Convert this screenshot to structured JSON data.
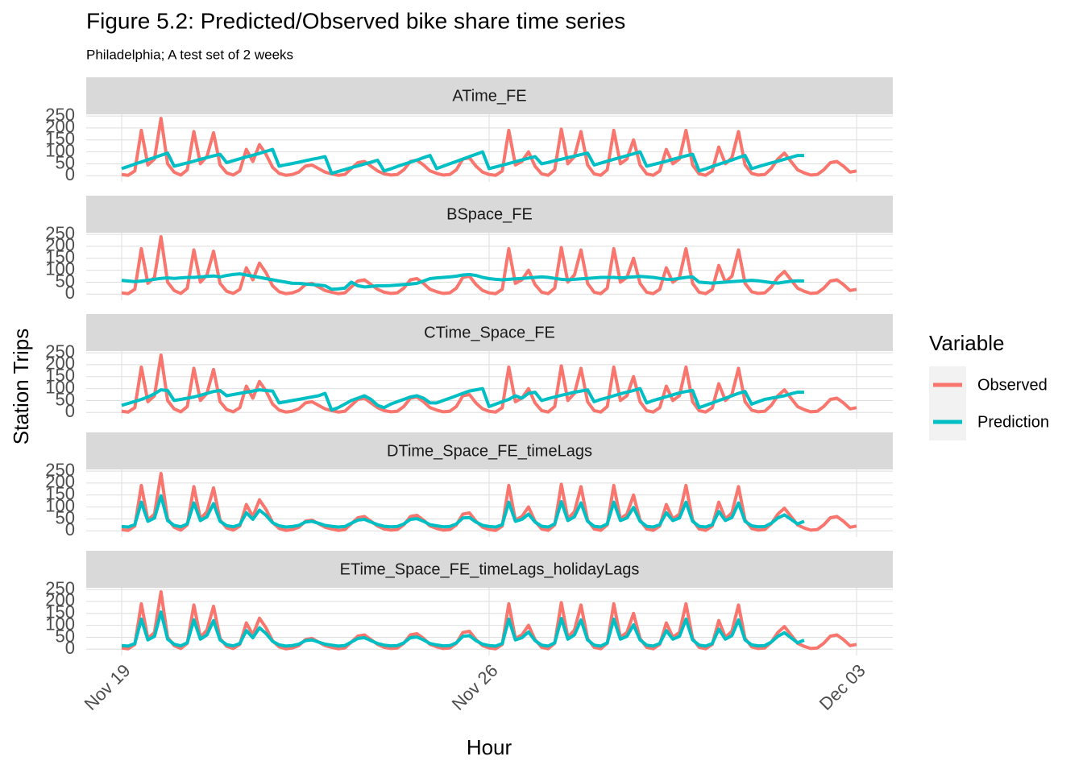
{
  "chart_data": {
    "type": "line",
    "title": "Figure 5.2: Predicted/Observed bike share time series",
    "subtitle": "Philadelphia; A test set of 2 weeks",
    "xlabel": "Hour",
    "ylabel": "Station Trips",
    "legend_title": "Variable",
    "legend_position": "right",
    "grid": true,
    "xlim": [
      -0.675,
      14.69
    ],
    "xticks": [
      {
        "value": 0,
        "label": "Nov 19"
      },
      {
        "value": 7,
        "label": "Nov 26"
      },
      {
        "value": 14,
        "label": "Dec 03"
      }
    ],
    "ylim": [
      -26,
      257
    ],
    "yticks": [
      0,
      50,
      100,
      150,
      200,
      250
    ],
    "x": [
      0,
      0.125,
      0.25,
      0.375,
      0.5,
      0.625,
      0.75,
      0.875,
      1,
      1.125,
      1.25,
      1.375,
      1.5,
      1.625,
      1.75,
      1.875,
      2,
      2.125,
      2.25,
      2.375,
      2.5,
      2.625,
      2.75,
      2.875,
      3,
      3.125,
      3.25,
      3.375,
      3.5,
      3.625,
      3.75,
      3.875,
      4,
      4.125,
      4.25,
      4.375,
      4.5,
      4.625,
      4.75,
      4.875,
      5,
      5.125,
      5.25,
      5.375,
      5.5,
      5.625,
      5.75,
      5.875,
      6,
      6.125,
      6.25,
      6.375,
      6.5,
      6.625,
      6.75,
      6.875,
      7,
      7.125,
      7.25,
      7.375,
      7.5,
      7.625,
      7.75,
      7.875,
      8,
      8.125,
      8.25,
      8.375,
      8.5,
      8.625,
      8.75,
      8.875,
      9,
      9.125,
      9.25,
      9.375,
      9.5,
      9.625,
      9.75,
      9.875,
      10,
      10.125,
      10.25,
      10.375,
      10.5,
      10.625,
      10.75,
      10.875,
      11,
      11.125,
      11.25,
      11.375,
      11.5,
      11.625,
      11.75,
      11.875,
      12,
      12.125,
      12.25,
      12.375,
      12.5,
      12.625,
      12.75,
      12.875,
      13,
      13.125,
      13.25,
      13.375,
      13.5,
      13.625,
      13.75,
      13.875,
      14
    ],
    "series": [
      {
        "name": "Observed",
        "color": "#F8766D",
        "values": [
          5,
          2,
          20,
          190,
          45,
          70,
          240,
          50,
          15,
          3,
          25,
          185,
          50,
          80,
          180,
          45,
          12,
          3,
          20,
          110,
          60,
          130,
          90,
          35,
          10,
          2,
          5,
          15,
          40,
          45,
          30,
          15,
          8,
          2,
          5,
          30,
          55,
          60,
          40,
          20,
          8,
          3,
          5,
          25,
          60,
          65,
          45,
          20,
          10,
          3,
          5,
          25,
          70,
          75,
          40,
          15,
          5,
          2,
          20,
          190,
          45,
          60,
          100,
          40,
          8,
          2,
          25,
          195,
          50,
          80,
          185,
          45,
          8,
          2,
          25,
          190,
          50,
          70,
          150,
          45,
          8,
          2,
          20,
          110,
          50,
          70,
          190,
          45,
          8,
          2,
          20,
          120,
          50,
          75,
          185,
          45,
          10,
          3,
          5,
          30,
          70,
          95,
          60,
          25,
          12,
          3,
          5,
          25,
          55,
          60,
          40,
          15,
          20
        ]
      },
      {
        "name": "Prediction",
        "color": "#00BFC4"
      }
    ],
    "panels": [
      {
        "title": "ATime_FE",
        "prediction": [
          30,
          39,
          49,
          58,
          67,
          76,
          86,
          95,
          40,
          47,
          54,
          61,
          69,
          76,
          83,
          90,
          55,
          63,
          71,
          79,
          86,
          94,
          102,
          110,
          40,
          46,
          51,
          57,
          63,
          69,
          74,
          80,
          10,
          18,
          26,
          34,
          41,
          49,
          57,
          65,
          20,
          29,
          39,
          48,
          57,
          66,
          76,
          85,
          30,
          40,
          50,
          60,
          70,
          80,
          90,
          100,
          30,
          37,
          44,
          51,
          59,
          66,
          73,
          80,
          50,
          56,
          63,
          69,
          76,
          82,
          89,
          95,
          45,
          53,
          61,
          69,
          76,
          84,
          92,
          100,
          40,
          47,
          54,
          61,
          69,
          76,
          83,
          90,
          20,
          29,
          39,
          48,
          57,
          66,
          76,
          85,
          30,
          38,
          46,
          54,
          61,
          69,
          77,
          85,
          85,
          null,
          null,
          null,
          null,
          null,
          null,
          null,
          null
        ]
      },
      {
        "title": "BSpace_FE",
        "prediction": [
          58,
          55,
          52,
          55,
          58,
          62,
          66,
          68,
          66,
          68,
          70,
          70,
          72,
          74,
          76,
          72,
          78,
          82,
          85,
          80,
          75,
          70,
          65,
          60,
          55,
          50,
          45,
          45,
          42,
          40,
          38,
          35,
          20,
          22,
          25,
          50,
          35,
          30,
          32,
          35,
          35,
          36,
          38,
          40,
          42,
          45,
          55,
          65,
          68,
          70,
          72,
          75,
          80,
          82,
          78,
          70,
          65,
          62,
          60,
          62,
          64,
          66,
          68,
          70,
          72,
          70,
          66,
          62,
          60,
          62,
          64,
          66,
          68,
          70,
          70,
          70,
          68,
          70,
          72,
          74,
          72,
          70,
          66,
          62,
          62,
          66,
          70,
          72,
          50,
          48,
          46,
          48,
          50,
          52,
          54,
          56,
          58,
          56,
          52,
          48,
          46,
          50,
          54,
          56,
          55,
          null,
          null,
          null,
          null,
          null,
          null,
          null,
          null
        ]
      },
      {
        "title": "CTime_Space_FE",
        "prediction": [
          30,
          38,
          46,
          55,
          65,
          78,
          95,
          92,
          50,
          55,
          60,
          65,
          72,
          80,
          88,
          92,
          70,
          75,
          80,
          85,
          90,
          95,
          92,
          90,
          40,
          45,
          50,
          55,
          60,
          65,
          70,
          80,
          10,
          20,
          35,
          50,
          60,
          70,
          55,
          30,
          20,
          35,
          45,
          55,
          65,
          70,
          60,
          40,
          40,
          50,
          60,
          70,
          80,
          90,
          95,
          100,
          25,
          35,
          45,
          55,
          70,
          60,
          80,
          85,
          50,
          58,
          65,
          72,
          78,
          85,
          90,
          95,
          45,
          55,
          62,
          70,
          78,
          85,
          92,
          100,
          40,
          50,
          58,
          66,
          74,
          82,
          88,
          92,
          20,
          30,
          40,
          50,
          60,
          70,
          80,
          88,
          35,
          45,
          55,
          60,
          65,
          70,
          78,
          85,
          85,
          null,
          null,
          null,
          null,
          null,
          null,
          null,
          null
        ]
      },
      {
        "title": "DTime_Space_FE_timeLags",
        "prediction": [
          18,
          16,
          26,
          120,
          40,
          54,
          147,
          43,
          23,
          17,
          29,
          117,
          43,
          59,
          114,
          40,
          22,
          17,
          26,
          76,
          48,
          87,
          65,
          34,
          21,
          16,
          18,
          23,
          37,
          40,
          32,
          23,
          19,
          16,
          18,
          32,
          45,
          48,
          37,
          26,
          19,
          17,
          18,
          29,
          48,
          51,
          40,
          26,
          21,
          17,
          18,
          29,
          54,
          56,
          37,
          23,
          18,
          16,
          26,
          120,
          40,
          48,
          70,
          37,
          19,
          16,
          29,
          122,
          43,
          59,
          117,
          40,
          19,
          16,
          29,
          120,
          43,
          54,
          98,
          40,
          19,
          16,
          26,
          76,
          43,
          54,
          120,
          40,
          19,
          16,
          26,
          81,
          43,
          56,
          117,
          40,
          21,
          17,
          18,
          32,
          54,
          67,
          48,
          29,
          40,
          null,
          null,
          null,
          null,
          null,
          null,
          null,
          null
        ]
      },
      {
        "title": "ETime_Space_FE_timeLags_holidayLags",
        "prediction": [
          15,
          13,
          24,
          126,
          39,
          54,
          156,
          42,
          21,
          14,
          27,
          123,
          42,
          60,
          120,
          39,
          19,
          14,
          24,
          78,
          48,
          90,
          66,
          33,
          18,
          13,
          15,
          21,
          36,
          39,
          30,
          21,
          17,
          13,
          15,
          30,
          45,
          48,
          36,
          24,
          17,
          14,
          15,
          27,
          48,
          51,
          39,
          24,
          18,
          14,
          15,
          27,
          54,
          57,
          36,
          21,
          15,
          13,
          24,
          126,
          39,
          48,
          72,
          36,
          17,
          13,
          27,
          129,
          42,
          60,
          123,
          39,
          17,
          13,
          27,
          126,
          42,
          54,
          102,
          39,
          17,
          13,
          24,
          78,
          42,
          54,
          126,
          39,
          17,
          13,
          24,
          84,
          42,
          57,
          123,
          39,
          18,
          14,
          15,
          30,
          54,
          69,
          48,
          27,
          38,
          null,
          null,
          null,
          null,
          null,
          null,
          null,
          null
        ]
      }
    ]
  }
}
